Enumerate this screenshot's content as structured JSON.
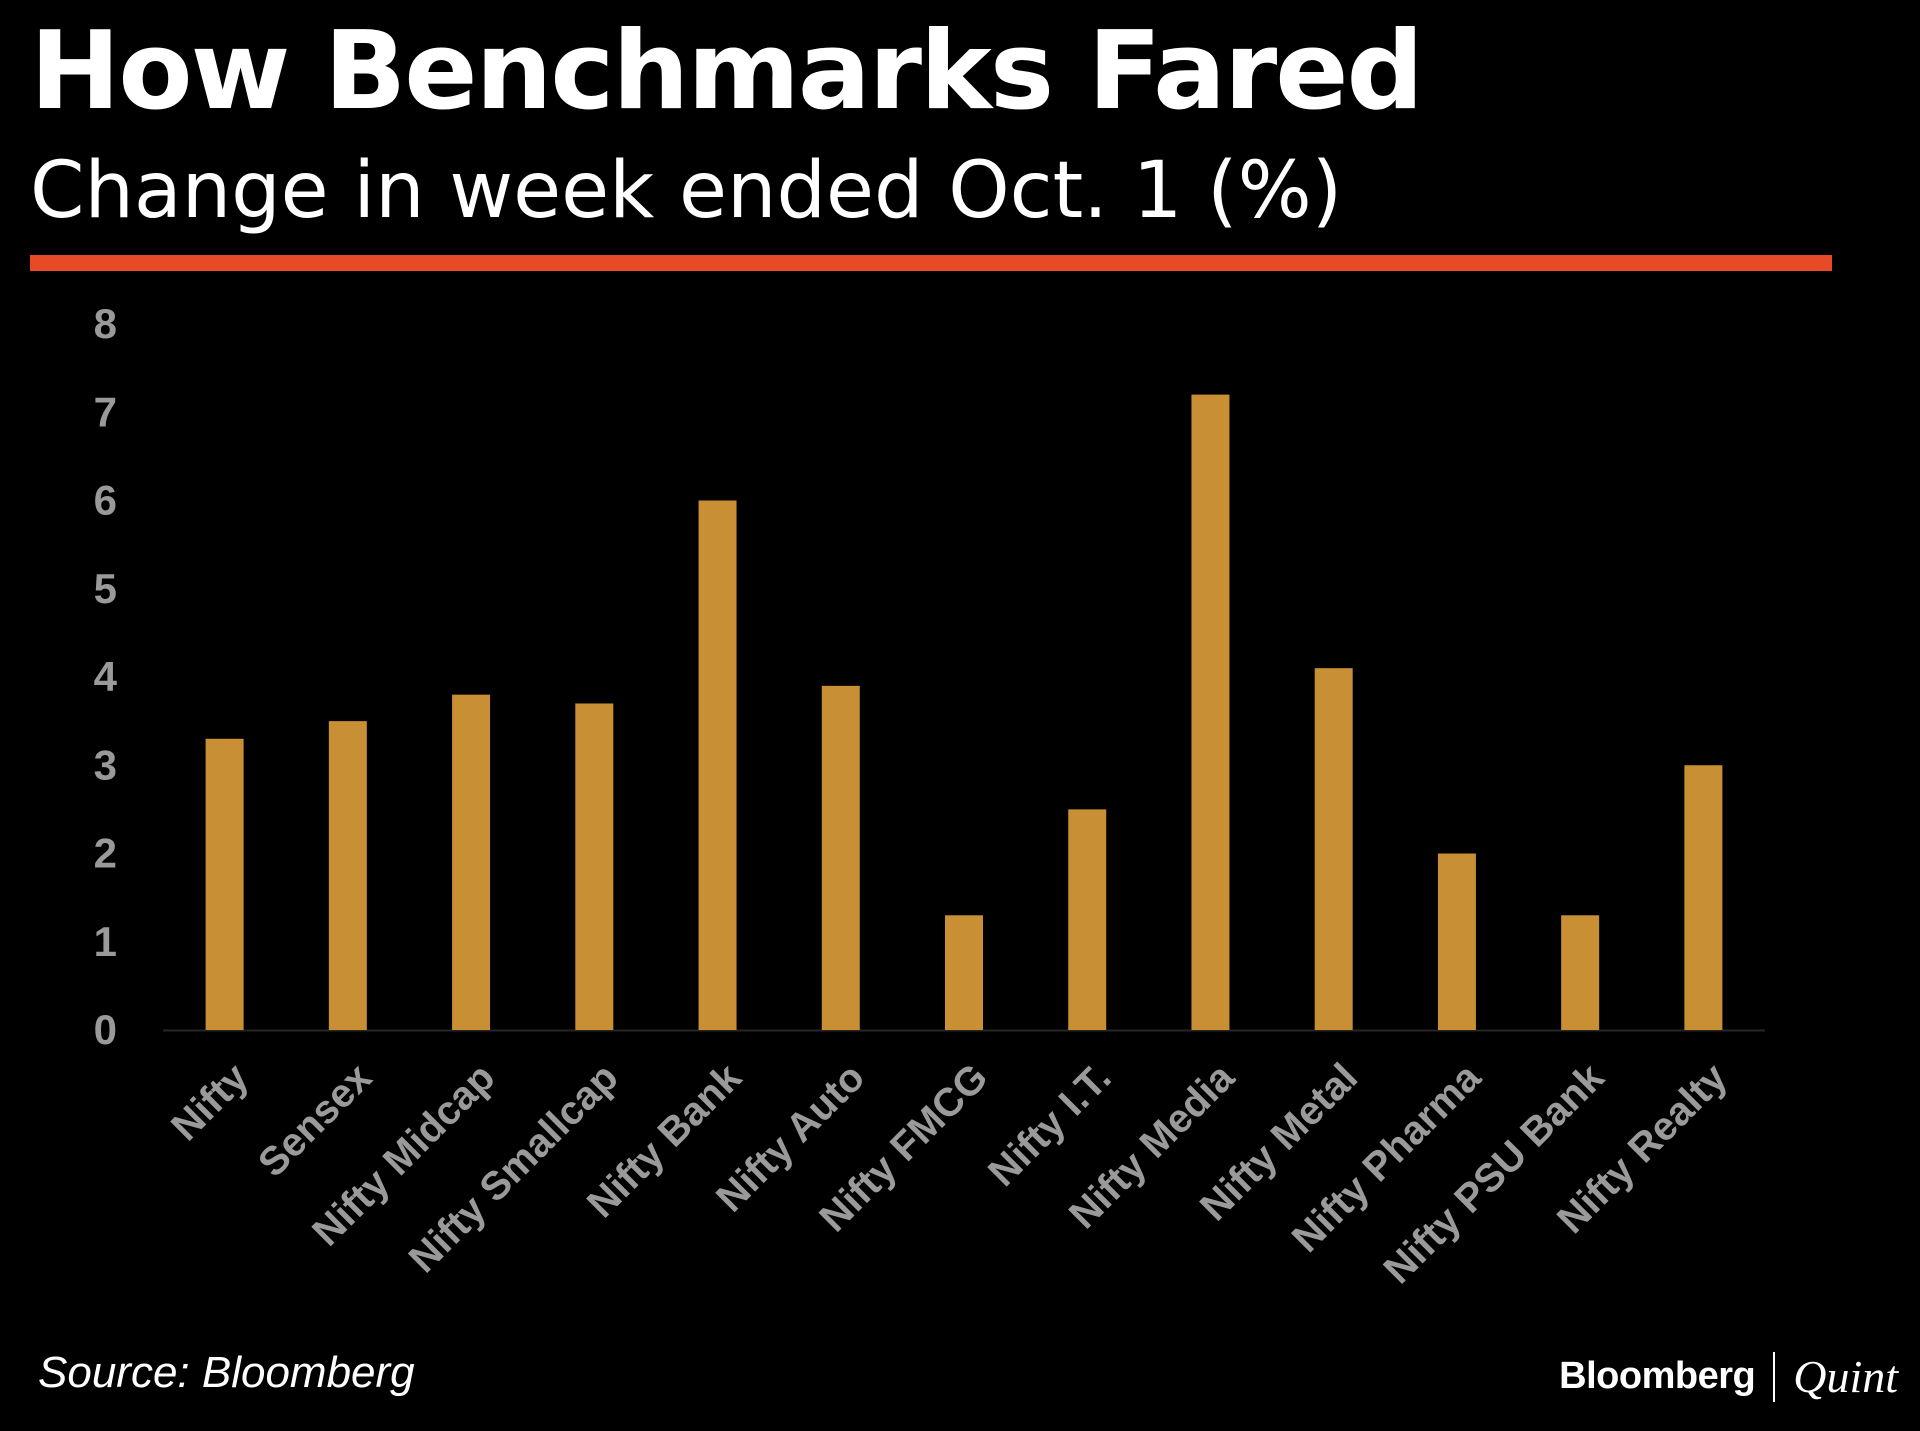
{
  "header": {
    "title": "How Benchmarks Fared",
    "subtitle": "Change in week ended Oct. 1 (%)"
  },
  "footer": {
    "source": "Source: Bloomberg",
    "logo_primary": "Bloomberg",
    "logo_secondary": "Quint"
  },
  "colors": {
    "background": "#000000",
    "accent_rule": "#e84a27",
    "bar": "#c98f35",
    "tick_label": "#9a9a9a",
    "text": "#ffffff"
  },
  "chart_data": {
    "type": "bar",
    "categories": [
      "Nifty",
      "Sensex",
      "Nifty Midcap",
      "Nifty Smallcap",
      "Nifty Bank",
      "Nifty Auto",
      "Nifty FMCG",
      "Nifty I.T.",
      "Nifty Media",
      "Nifty Metal",
      "Nifty Pharma",
      "Nifty PSU Bank",
      "Nifty Realty"
    ],
    "values": [
      3.3,
      3.5,
      3.8,
      3.7,
      6.0,
      3.9,
      1.3,
      2.5,
      7.2,
      4.1,
      2.0,
      1.3,
      3.0
    ],
    "ylim": [
      0,
      8
    ],
    "yticks": [
      0,
      1,
      2,
      3,
      4,
      5,
      6,
      7,
      8
    ],
    "grid": false,
    "legend": "none",
    "xlabel": "",
    "ylabel": ""
  }
}
